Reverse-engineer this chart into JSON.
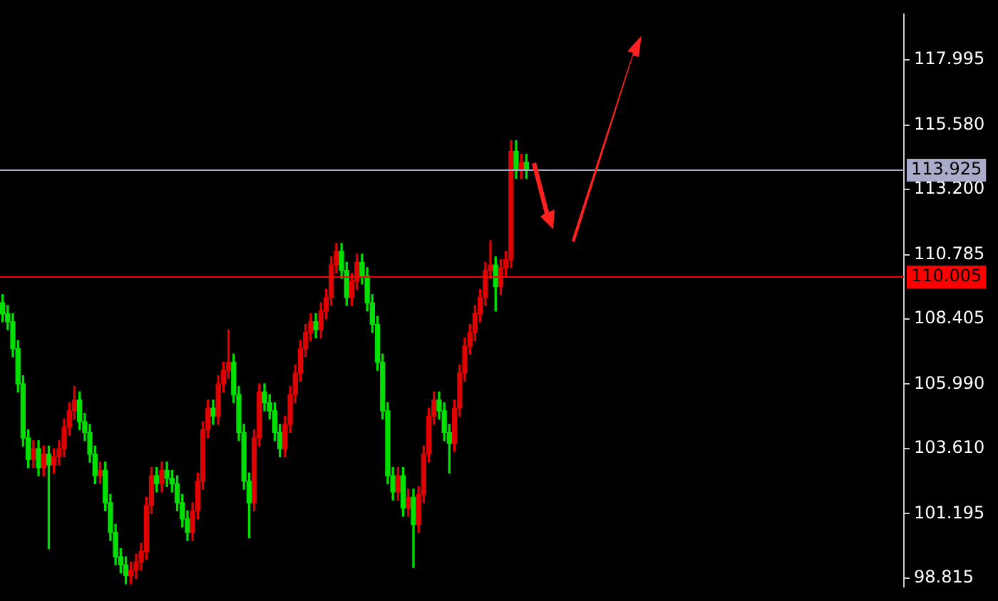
{
  "chart_data": {
    "type": "candlestick",
    "categories": [
      null,
      null,
      null,
      null,
      null,
      null,
      null,
      null,
      null,
      null,
      null,
      null,
      null,
      null,
      null,
      null,
      null,
      null,
      null,
      null,
      null,
      null,
      null,
      null,
      null,
      null,
      null,
      null,
      null,
      null,
      null,
      null,
      null,
      null,
      null,
      null,
      null,
      null,
      null,
      null,
      null,
      null,
      null,
      null,
      null,
      null,
      null,
      null,
      null,
      null,
      null,
      null,
      null,
      null,
      null,
      null,
      null,
      null,
      null,
      null,
      null,
      null,
      null,
      null,
      null,
      null,
      null,
      null,
      null,
      null,
      null,
      null,
      null,
      null,
      null,
      null,
      null,
      null,
      null,
      null,
      null,
      null,
      null,
      null,
      null,
      null,
      null,
      null,
      null,
      null,
      null,
      null,
      null,
      null,
      null,
      null,
      null,
      null,
      null,
      null,
      null,
      null,
      null,
      null,
      null,
      null,
      null,
      null,
      null,
      null,
      null,
      null,
      null,
      null,
      null,
      null,
      null,
      null,
      null,
      null,
      null,
      null,
      null,
      null,
      null,
      null,
      null,
      null,
      null,
      null,
      null,
      null,
      null,
      null,
      null,
      null,
      null,
      null,
      null,
      null,
      null,
      null,
      null,
      null,
      null,
      null,
      null,
      null,
      null,
      null,
      null,
      null,
      null,
      null,
      null,
      null,
      null,
      null,
      null,
      null,
      null,
      null,
      null,
      null,
      null,
      null,
      null,
      null,
      null,
      null,
      null,
      null,
      null,
      null,
      null,
      null
    ],
    "ohlc": [
      [
        109.0,
        109.3,
        108.3,
        108.6
      ],
      [
        108.6,
        108.9,
        108.0,
        108.3
      ],
      [
        108.3,
        108.6,
        107.0,
        107.3
      ],
      [
        107.3,
        107.6,
        105.7,
        106.0
      ],
      [
        106.0,
        106.3,
        103.7,
        104.0
      ],
      [
        104.0,
        104.3,
        102.9,
        103.2
      ],
      [
        103.2,
        103.9,
        102.9,
        103.6
      ],
      [
        103.6,
        103.9,
        102.6,
        102.9
      ],
      [
        102.9,
        103.7,
        102.6,
        103.4
      ],
      [
        103.4,
        103.7,
        99.9,
        103.0
      ],
      [
        103.0,
        103.6,
        102.7,
        103.3
      ],
      [
        103.3,
        103.9,
        103.0,
        103.6
      ],
      [
        103.6,
        104.7,
        103.3,
        104.4
      ],
      [
        104.4,
        105.3,
        104.1,
        105.0
      ],
      [
        105.0,
        105.9,
        104.7,
        105.4
      ],
      [
        105.4,
        105.7,
        104.3,
        104.6
      ],
      [
        104.6,
        104.9,
        103.9,
        104.2
      ],
      [
        104.2,
        104.5,
        103.1,
        103.4
      ],
      [
        103.4,
        103.7,
        102.3,
        102.6
      ],
      [
        102.6,
        103.1,
        102.3,
        102.8
      ],
      [
        102.8,
        103.1,
        101.3,
        101.6
      ],
      [
        101.6,
        101.9,
        100.2,
        100.5
      ],
      [
        100.5,
        100.8,
        99.3,
        99.6
      ],
      [
        99.6,
        99.9,
        99.0,
        99.3
      ],
      [
        99.3,
        99.6,
        98.6,
        98.9
      ],
      [
        98.9,
        99.4,
        98.6,
        99.1
      ],
      [
        99.1,
        99.7,
        98.8,
        99.4
      ],
      [
        99.4,
        100.1,
        99.1,
        99.8
      ],
      [
        99.8,
        101.8,
        99.5,
        101.5
      ],
      [
        101.5,
        102.9,
        101.2,
        102.6
      ],
      [
        102.6,
        102.9,
        102.0,
        102.3
      ],
      [
        102.3,
        103.1,
        102.0,
        102.8
      ],
      [
        102.8,
        103.1,
        102.2,
        102.5
      ],
      [
        102.5,
        102.8,
        102.0,
        102.3
      ],
      [
        102.3,
        102.6,
        101.3,
        101.6
      ],
      [
        101.6,
        101.9,
        100.7,
        101.0
      ],
      [
        101.0,
        101.3,
        100.2,
        100.5
      ],
      [
        100.5,
        101.6,
        100.2,
        101.3
      ],
      [
        101.3,
        102.7,
        101.0,
        102.4
      ],
      [
        102.4,
        104.6,
        102.1,
        104.3
      ],
      [
        104.3,
        105.4,
        104.0,
        105.1
      ],
      [
        105.1,
        105.4,
        104.5,
        104.8
      ],
      [
        104.8,
        106.3,
        104.5,
        106.0
      ],
      [
        106.0,
        106.8,
        105.7,
        106.5
      ],
      [
        106.5,
        108.0,
        106.2,
        106.8
      ],
      [
        106.8,
        107.1,
        105.3,
        105.6
      ],
      [
        105.6,
        105.9,
        103.9,
        104.2
      ],
      [
        104.2,
        104.5,
        102.1,
        102.4
      ],
      [
        102.4,
        102.7,
        100.3,
        101.6
      ],
      [
        101.6,
        104.3,
        101.3,
        104.0
      ],
      [
        104.0,
        106.0,
        103.7,
        105.7
      ],
      [
        105.7,
        106.0,
        105.0,
        105.3
      ],
      [
        105.3,
        105.6,
        104.7,
        105.0
      ],
      [
        105.0,
        105.3,
        103.9,
        104.2
      ],
      [
        104.2,
        104.5,
        103.3,
        103.6
      ],
      [
        103.6,
        104.8,
        103.3,
        104.5
      ],
      [
        104.5,
        105.9,
        104.2,
        105.6
      ],
      [
        105.6,
        106.7,
        105.3,
        106.4
      ],
      [
        106.4,
        107.6,
        106.1,
        107.3
      ],
      [
        107.3,
        108.2,
        107.0,
        107.9
      ],
      [
        107.9,
        108.6,
        107.6,
        108.3
      ],
      [
        108.3,
        108.6,
        107.7,
        108.0
      ],
      [
        108.0,
        109.0,
        107.7,
        108.7
      ],
      [
        108.7,
        109.5,
        108.4,
        109.2
      ],
      [
        109.2,
        110.7,
        108.9,
        110.4
      ],
      [
        110.4,
        111.2,
        110.1,
        110.9
      ],
      [
        110.9,
        111.2,
        109.9,
        110.2
      ],
      [
        110.2,
        110.5,
        108.9,
        109.2
      ],
      [
        109.2,
        110.1,
        108.9,
        109.8
      ],
      [
        109.8,
        110.8,
        109.5,
        110.5
      ],
      [
        110.5,
        110.8,
        109.7,
        110.0
      ],
      [
        110.0,
        110.3,
        108.7,
        109.0
      ],
      [
        109.0,
        109.3,
        107.9,
        108.2
      ],
      [
        108.2,
        108.5,
        106.5,
        106.8
      ],
      [
        106.8,
        107.1,
        104.7,
        105.0
      ],
      [
        105.0,
        105.3,
        102.3,
        102.6
      ],
      [
        102.6,
        102.9,
        101.7,
        102.0
      ],
      [
        102.0,
        102.9,
        101.7,
        102.6
      ],
      [
        102.6,
        102.9,
        101.1,
        101.4
      ],
      [
        101.4,
        102.1,
        101.1,
        101.8
      ],
      [
        101.8,
        102.1,
        99.2,
        100.8
      ],
      [
        100.8,
        102.2,
        100.5,
        101.9
      ],
      [
        101.9,
        103.7,
        101.6,
        103.4
      ],
      [
        103.4,
        105.1,
        103.1,
        104.8
      ],
      [
        104.8,
        105.7,
        104.5,
        105.4
      ],
      [
        105.4,
        105.7,
        104.7,
        105.0
      ],
      [
        105.0,
        105.3,
        103.9,
        104.2
      ],
      [
        104.2,
        104.5,
        102.7,
        103.8
      ],
      [
        103.8,
        105.4,
        103.5,
        105.1
      ],
      [
        105.1,
        106.7,
        104.8,
        106.4
      ],
      [
        106.4,
        107.7,
        106.1,
        107.4
      ],
      [
        107.4,
        108.2,
        107.1,
        107.9
      ],
      [
        107.9,
        108.9,
        107.6,
        108.6
      ],
      [
        108.6,
        109.5,
        108.3,
        109.2
      ],
      [
        109.2,
        110.5,
        108.9,
        110.2
      ],
      [
        110.2,
        111.3,
        109.9,
        110.4
      ],
      [
        110.4,
        110.7,
        108.7,
        109.6
      ],
      [
        109.6,
        110.6,
        109.3,
        110.3
      ],
      [
        110.3,
        110.9,
        110.0,
        110.6
      ],
      [
        110.6,
        115.0,
        110.3,
        114.6
      ],
      [
        114.6,
        115.0,
        113.6,
        113.9
      ],
      [
        113.9,
        114.5,
        113.6,
        114.2
      ],
      [
        114.2,
        114.5,
        113.6,
        113.9
      ],
      null,
      null,
      null,
      null,
      null,
      null,
      null,
      null,
      null,
      null,
      null,
      null,
      null,
      null,
      null,
      null,
      null,
      null,
      null,
      null,
      null,
      null,
      null,
      null,
      null,
      null,
      null,
      null,
      null,
      null,
      null,
      null,
      null,
      null,
      null,
      null,
      null,
      null,
      null,
      null,
      null,
      null,
      null,
      null,
      null,
      null,
      null,
      null,
      null,
      null,
      null,
      null,
      null,
      null,
      null,
      null,
      null,
      null,
      null,
      null,
      null,
      null,
      null,
      null,
      null,
      null,
      null,
      null,
      null,
      null,
      null,
      null,
      null
    ],
    "colors": [
      "#00e000",
      "#00e000",
      "#00e000",
      "#00e000",
      "#00e000",
      "#00e000",
      "#e00000",
      "#00e000",
      "#e00000",
      "#00e000",
      "#e00000",
      "#e00000",
      "#e00000",
      "#e00000",
      "#e00000",
      "#00e000",
      "#00e000",
      "#00e000",
      "#00e000",
      "#e00000",
      "#00e000",
      "#00e000",
      "#00e000",
      "#00e000",
      "#00e000",
      "#e00000",
      "#e00000",
      "#e00000",
      "#e00000",
      "#e00000",
      "#00e000",
      "#e00000",
      "#00e000",
      "#00e000",
      "#00e000",
      "#00e000",
      "#00e000",
      "#e00000",
      "#e00000",
      "#e00000",
      "#e00000",
      "#00e000",
      "#e00000",
      "#e00000",
      "#e00000",
      "#00e000",
      "#00e000",
      "#00e000",
      "#00e000",
      "#e00000",
      "#e00000",
      "#00e000",
      "#00e000",
      "#00e000",
      "#00e000",
      "#e00000",
      "#e00000",
      "#e00000",
      "#e00000",
      "#e00000",
      "#e00000",
      "#00e000",
      "#e00000",
      "#e00000",
      "#e00000",
      "#e00000",
      "#00e000",
      "#00e000",
      "#e00000",
      "#e00000",
      "#00e000",
      "#00e000",
      "#00e000",
      "#00e000",
      "#00e000",
      "#00e000",
      "#00e000",
      "#e00000",
      "#00e000",
      "#e00000",
      "#00e000",
      "#e00000",
      "#e00000",
      "#e00000",
      "#e00000",
      "#00e000",
      "#00e000",
      "#00e000",
      "#e00000",
      "#e00000",
      "#e00000",
      "#e00000",
      "#e00000",
      "#e00000",
      "#e00000",
      "#e00000",
      "#00e000",
      "#e00000",
      "#e00000",
      "#e00000",
      "#00e000",
      "#e00000",
      "#00e000",
      null,
      null,
      null,
      null,
      null,
      null,
      null,
      null,
      null,
      null,
      null,
      null,
      null,
      null,
      null,
      null,
      null,
      null,
      null,
      null,
      null,
      null,
      null,
      null,
      null,
      null,
      null,
      null,
      null,
      null,
      null,
      null,
      null,
      null,
      null,
      null,
      null,
      null,
      null,
      null,
      null,
      null,
      null,
      null,
      null,
      null,
      null,
      null,
      null,
      null,
      null,
      null,
      null,
      null,
      null,
      null,
      null,
      null,
      null,
      null,
      null,
      null,
      null,
      null,
      null,
      null,
      null,
      null,
      null,
      null,
      null,
      null,
      null
    ],
    "ylim": [
      98.5,
      119.67
    ],
    "yticks": [
      98.815,
      101.195,
      {
        "value": 103.61,
        "label": "103.610"
      },
      {
        "value": 105.99,
        "label": "105.990"
      },
      108.405,
      110.785,
      {
        "value": 113.2,
        "label": "113.200"
      },
      {
        "value": 115.58,
        "label": "115.580"
      },
      117.995
    ],
    "ref_lines": [
      {
        "axis": "y",
        "value": 113.925,
        "label": "113.925",
        "color": "#a8acc8"
      },
      {
        "axis": "y",
        "value": 110.005,
        "label": "110.005",
        "color": "#ff0000"
      }
    ],
    "tick_labels": "y",
    "grid": false,
    "legend": false
  }
}
